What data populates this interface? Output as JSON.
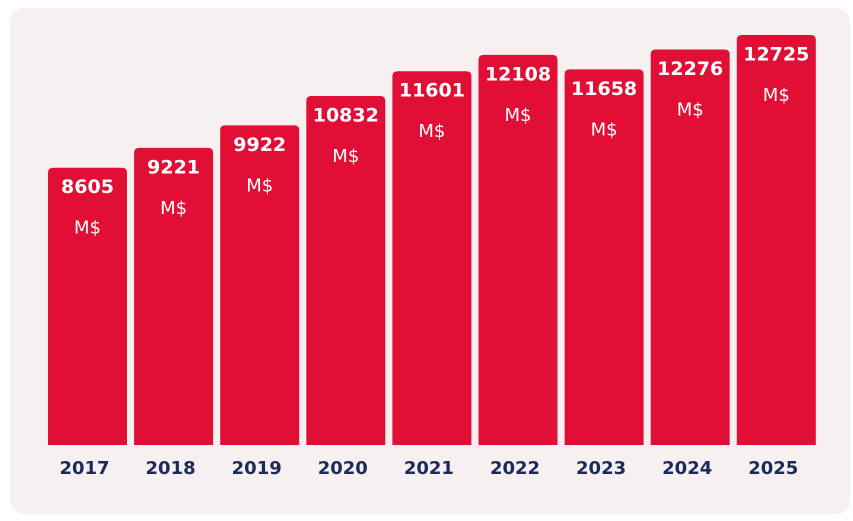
{
  "chart_data": {
    "type": "bar",
    "categories": [
      "2017",
      "2018",
      "2019",
      "2020",
      "2021",
      "2022",
      "2023",
      "2024",
      "2025"
    ],
    "values": [
      8605,
      9221,
      9922,
      10832,
      11601,
      12108,
      11658,
      12276,
      12725
    ],
    "unit": "M$",
    "color": "#e10f35"
  }
}
